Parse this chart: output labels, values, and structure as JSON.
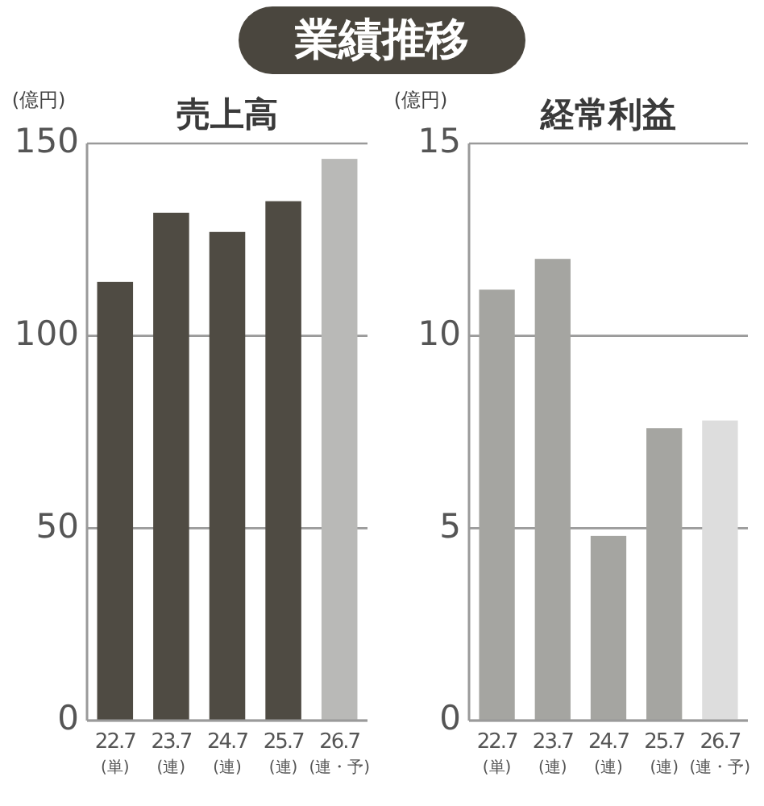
{
  "chart_data": [
    {
      "type": "bar",
      "title": "売上高",
      "ylabel": "(億円)",
      "annotations": [
        "業績推移"
      ],
      "categories": [
        "22.7\n(単)",
        "23.7\n(連)",
        "24.7\n(連)",
        "25.7\n(連)",
        "26.7\n(連・予)"
      ],
      "values": [
        114,
        132,
        127,
        135,
        146
      ],
      "colors": [
        "#4f4b43",
        "#4f4b43",
        "#4f4b43",
        "#4f4b43",
        "#b9b9b7"
      ],
      "ylim": [
        0,
        150
      ],
      "yticks": [
        0,
        50,
        100,
        150
      ],
      "grid": "y"
    },
    {
      "type": "bar",
      "title": "経常利益",
      "ylabel": "(億円)",
      "categories": [
        "22.7\n(単)",
        "23.7\n(連)",
        "24.7\n(連)",
        "25.7\n(連)",
        "26.7\n(連・予)"
      ],
      "values": [
        11.2,
        12.0,
        4.8,
        7.6,
        7.8
      ],
      "colors": [
        "#a5a5a1",
        "#a5a5a1",
        "#a5a5a1",
        "#a5a5a1",
        "#dddddd"
      ],
      "ylim": [
        0,
        15
      ],
      "yticks": [
        0,
        5,
        10,
        15
      ],
      "grid": "y"
    }
  ]
}
